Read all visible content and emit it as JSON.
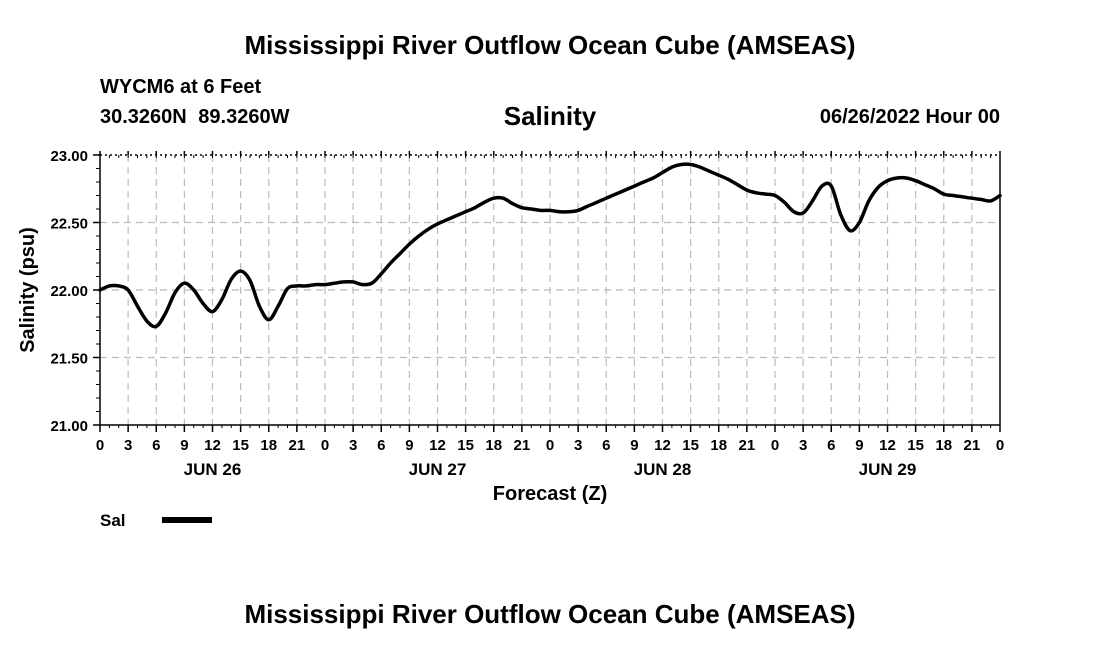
{
  "page": {
    "title": "Mississippi River Outflow Ocean Cube (AMSEAS)",
    "footer_title": "Mississippi River Outflow Ocean Cube (AMSEAS)",
    "station": "WYCM6 at 6 Feet",
    "coordinates": "30.3260N  89.3260W",
    "issued": "06/26/2022 Hour 00"
  },
  "chart_data": {
    "type": "line",
    "title": "Salinity",
    "xlabel": "Forecast (Z)",
    "ylabel": "Salinity (psu)",
    "ylim": [
      21.0,
      23.0
    ],
    "xlim": [
      0,
      96
    ],
    "x_units": "hours since 06/26/2022 00Z",
    "y_ticks": [
      "21.00",
      "21.50",
      "22.00",
      "22.50",
      "23.00"
    ],
    "x_tick_labels": [
      "0",
      "3",
      "6",
      "9",
      "12",
      "15",
      "18",
      "21",
      "0",
      "3",
      "6",
      "9",
      "12",
      "15",
      "18",
      "21",
      "0",
      "3",
      "6",
      "9",
      "12",
      "15",
      "18",
      "21",
      "0",
      "3",
      "6",
      "9",
      "12",
      "15",
      "18",
      "21",
      "0"
    ],
    "day_labels": [
      {
        "label": "JUN 26",
        "hour": 12
      },
      {
        "label": "JUN 27",
        "hour": 36
      },
      {
        "label": "JUN 28",
        "hour": 60
      },
      {
        "label": "JUN 29",
        "hour": 84
      }
    ],
    "grid": true,
    "legend": [
      {
        "label": "Sal",
        "color": "#000000"
      }
    ],
    "colors": {
      "line": "#000000",
      "grid": "#bbbbbb",
      "axis": "#000000"
    },
    "series": [
      {
        "name": "Sal",
        "x": [
          0,
          1,
          2,
          3,
          4,
          5,
          6,
          7,
          8,
          9,
          10,
          11,
          12,
          13,
          14,
          15,
          16,
          17,
          18,
          19,
          20,
          21,
          22,
          23,
          24,
          25,
          26,
          27,
          28,
          29,
          30,
          31,
          32,
          33,
          34,
          35,
          36,
          37,
          38,
          39,
          40,
          41,
          42,
          43,
          44,
          45,
          46,
          47,
          48,
          49,
          50,
          51,
          52,
          53,
          54,
          55,
          56,
          57,
          58,
          59,
          60,
          61,
          62,
          63,
          64,
          65,
          66,
          67,
          68,
          69,
          70,
          71,
          72,
          73,
          74,
          75,
          76,
          77,
          78,
          79,
          80,
          81,
          82,
          83,
          84,
          85,
          86,
          87,
          88,
          89,
          90,
          91,
          92,
          93,
          94,
          95,
          96
        ],
        "values": [
          22.0,
          22.03,
          22.03,
          22.0,
          21.88,
          21.77,
          21.73,
          21.83,
          21.98,
          22.05,
          22.0,
          21.9,
          21.84,
          21.93,
          22.08,
          22.14,
          22.07,
          21.88,
          21.78,
          21.88,
          22.01,
          22.03,
          22.03,
          22.04,
          22.04,
          22.05,
          22.06,
          22.06,
          22.04,
          22.05,
          22.12,
          22.2,
          22.27,
          22.34,
          22.4,
          22.45,
          22.49,
          22.52,
          22.55,
          22.58,
          22.61,
          22.65,
          22.68,
          22.68,
          22.64,
          22.61,
          22.6,
          22.59,
          22.59,
          22.58,
          22.58,
          22.59,
          22.62,
          22.65,
          22.68,
          22.71,
          22.74,
          22.77,
          22.8,
          22.83,
          22.87,
          22.91,
          22.93,
          22.93,
          22.91,
          22.88,
          22.85,
          22.82,
          22.78,
          22.74,
          22.72,
          22.71,
          22.7,
          22.65,
          22.58,
          22.57,
          22.66,
          22.77,
          22.77,
          22.56,
          22.44,
          22.5,
          22.66,
          22.76,
          22.81,
          22.83,
          22.83,
          22.81,
          22.78,
          22.75,
          22.71,
          22.7,
          22.69,
          22.68,
          22.67,
          22.66,
          22.7
        ]
      }
    ]
  }
}
